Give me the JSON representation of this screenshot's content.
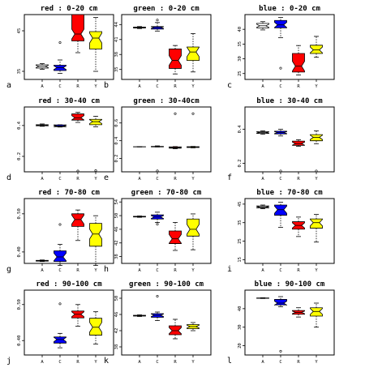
{
  "colors": {
    "A": "#ffffff",
    "C": "#0000ff",
    "R": "#ff0000",
    "Y": "#ffff00"
  },
  "chart_data": [
    {
      "type": "box",
      "panel_label": "a",
      "title": "red : 0-20 cm",
      "categories": [
        "A",
        "C",
        "R",
        "Y"
      ],
      "ylim": [
        0.33,
        0.49
      ],
      "yticks": [
        {
          "v": 0.35,
          "t": "35"
        },
        {
          "v": 0.45,
          "t": "45"
        }
      ],
      "boxes": [
        {
          "min": 0.355,
          "q1": 0.358,
          "med": 0.362,
          "q3": 0.366,
          "max": 0.369,
          "outliers": []
        },
        {
          "min": 0.345,
          "q1": 0.352,
          "med": 0.359,
          "q3": 0.365,
          "max": 0.378,
          "outliers": [
            0.421
          ]
        },
        {
          "min": 0.396,
          "q1": 0.425,
          "med": 0.442,
          "q3": 0.49,
          "max": 0.49,
          "outliers": []
        },
        {
          "min": 0.35,
          "q1": 0.405,
          "med": 0.432,
          "q3": 0.448,
          "max": 0.483,
          "outliers": []
        }
      ]
    },
    {
      "type": "box",
      "panel_label": "b",
      "title": "green : 0-20 cm",
      "categories": [
        "A",
        "C",
        "R",
        "Y"
      ],
      "ylim": [
        0.33,
        0.46
      ],
      "yticks": [
        {
          "v": 0.35,
          "t": "35"
        },
        {
          "v": 0.38,
          "t": "38"
        },
        {
          "v": 0.41,
          "t": "41"
        },
        {
          "v": 0.44,
          "t": "44"
        }
      ],
      "boxes": [
        {
          "min": 0.432,
          "q1": 0.433,
          "med": 0.434,
          "q3": 0.435,
          "max": 0.436,
          "outliers": []
        },
        {
          "min": 0.427,
          "q1": 0.431,
          "med": 0.434,
          "q3": 0.436,
          "max": 0.444,
          "outliers": [
            0.449
          ]
        },
        {
          "min": 0.341,
          "q1": 0.352,
          "med": 0.368,
          "q3": 0.391,
          "max": 0.398,
          "outliers": []
        },
        {
          "min": 0.345,
          "q1": 0.368,
          "med": 0.385,
          "q3": 0.395,
          "max": 0.422,
          "outliers": []
        }
      ]
    },
    {
      "type": "box",
      "panel_label": "c",
      "title": "blue : 0-20 cm",
      "categories": [
        "A",
        "C",
        "R",
        "Y"
      ],
      "ylim": [
        0.23,
        0.45
      ],
      "yticks": [
        {
          "v": 0.25,
          "t": "25"
        },
        {
          "v": 0.3,
          "t": "30"
        },
        {
          "v": 0.35,
          "t": "35"
        },
        {
          "v": 0.4,
          "t": "40"
        }
      ],
      "boxes": [
        {
          "min": 0.398,
          "q1": 0.405,
          "med": 0.412,
          "q3": 0.42,
          "max": 0.426,
          "outliers": []
        },
        {
          "min": 0.372,
          "q1": 0.405,
          "med": 0.415,
          "q3": 0.43,
          "max": 0.44,
          "outliers": [
            0.268
          ]
        },
        {
          "min": 0.245,
          "q1": 0.255,
          "med": 0.275,
          "q3": 0.318,
          "max": 0.345,
          "outliers": []
        },
        {
          "min": 0.305,
          "q1": 0.318,
          "med": 0.33,
          "q3": 0.346,
          "max": 0.376,
          "outliers": []
        }
      ]
    },
    {
      "type": "box",
      "panel_label": "d",
      "title": "red : 30-40 cm",
      "categories": [
        "A",
        "C",
        "R",
        "Y"
      ],
      "ylim": [
        0.1,
        0.52
      ],
      "yticks": [
        {
          "v": 0.2,
          "t": "0.2"
        },
        {
          "v": 0.4,
          "t": "0.4"
        }
      ],
      "boxes": [
        {
          "min": 0.395,
          "q1": 0.398,
          "med": 0.401,
          "q3": 0.405,
          "max": 0.41,
          "outliers": []
        },
        {
          "min": 0.39,
          "q1": 0.392,
          "med": 0.397,
          "q3": 0.404,
          "max": 0.405,
          "outliers": []
        },
        {
          "min": 0.42,
          "q1": 0.435,
          "med": 0.45,
          "q3": 0.475,
          "max": 0.485,
          "outliers": [
            0.105
          ]
        },
        {
          "min": 0.392,
          "q1": 0.405,
          "med": 0.425,
          "q3": 0.44,
          "max": 0.46,
          "outliers": [
            0.108
          ]
        }
      ]
    },
    {
      "type": "box",
      "panel_label": "e",
      "title": "green : 30-40cm",
      "categories": [
        "A",
        "C",
        "R",
        "Y"
      ],
      "ylim": [
        0.05,
        0.78
      ],
      "yticks": [
        {
          "v": 0.2,
          "t": "0.2"
        },
        {
          "v": 0.4,
          "t": "0.4"
        },
        {
          "v": 0.6,
          "t": "0.6"
        }
      ],
      "boxes": [
        {
          "min": 0.33,
          "q1": 0.331,
          "med": 0.332,
          "q3": 0.333,
          "max": 0.334,
          "outliers": []
        },
        {
          "min": 0.33,
          "q1": 0.331,
          "med": 0.333,
          "q3": 0.336,
          "max": 0.342,
          "outliers": [
            0.06
          ]
        },
        {
          "min": 0.31,
          "q1": 0.316,
          "med": 0.322,
          "q3": 0.33,
          "max": 0.334,
          "outliers": [
            0.705
          ]
        },
        {
          "min": 0.32,
          "q1": 0.324,
          "med": 0.328,
          "q3": 0.333,
          "max": 0.336,
          "outliers": [
            0.705
          ]
        }
      ]
    },
    {
      "type": "box",
      "panel_label": "f",
      "title": "blue : 30-40 cm",
      "categories": [
        "A",
        "C",
        "R",
        "Y"
      ],
      "ylim": [
        0.15,
        0.53
      ],
      "yticks": [
        {
          "v": 0.2,
          "t": "0.2"
        },
        {
          "v": 0.4,
          "t": "0.4"
        }
      ],
      "boxes": [
        {
          "min": 0.37,
          "q1": 0.375,
          "med": 0.38,
          "q3": 0.385,
          "max": 0.39,
          "outliers": []
        },
        {
          "min": 0.36,
          "q1": 0.372,
          "med": 0.38,
          "q3": 0.388,
          "max": 0.4,
          "outliers": [
            0.155
          ]
        },
        {
          "min": 0.3,
          "q1": 0.305,
          "med": 0.315,
          "q3": 0.33,
          "max": 0.338,
          "outliers": []
        },
        {
          "min": 0.315,
          "q1": 0.332,
          "med": 0.352,
          "q3": 0.368,
          "max": 0.39,
          "outliers": [
            0.155
          ]
        }
      ]
    },
    {
      "type": "box",
      "panel_label": "g",
      "title": "red : 70-80 cm",
      "categories": [
        "A",
        "C",
        "R",
        "Y"
      ],
      "ylim": [
        0.37,
        0.54
      ],
      "yticks": [
        {
          "v": 0.4,
          "t": "0.40"
        },
        {
          "v": 0.5,
          "t": "0.50"
        }
      ],
      "boxes": [
        {
          "min": 0.375,
          "q1": 0.376,
          "med": 0.377,
          "q3": 0.378,
          "max": 0.379,
          "outliers": []
        },
        {
          "min": 0.365,
          "q1": 0.375,
          "med": 0.387,
          "q3": 0.403,
          "max": 0.42,
          "outliers": [
            0.472
          ]
        },
        {
          "min": 0.43,
          "q1": 0.467,
          "med": 0.485,
          "q3": 0.5,
          "max": 0.51,
          "outliers": []
        },
        {
          "min": 0.365,
          "q1": 0.415,
          "med": 0.447,
          "q3": 0.475,
          "max": 0.495,
          "outliers": []
        }
      ]
    },
    {
      "type": "box",
      "panel_label": "h",
      "title": "green : 70-80 cm",
      "categories": [
        "A",
        "C",
        "R",
        "Y"
      ],
      "ylim": [
        0.36,
        0.55
      ],
      "yticks": [
        {
          "v": 0.38,
          "t": "38"
        },
        {
          "v": 0.42,
          "t": "42"
        },
        {
          "v": 0.46,
          "t": "46"
        },
        {
          "v": 0.5,
          "t": "50"
        },
        {
          "v": 0.54,
          "t": "54"
        }
      ],
      "boxes": [
        {
          "min": 0.495,
          "q1": 0.496,
          "med": 0.497,
          "q3": 0.498,
          "max": 0.499,
          "outliers": []
        },
        {
          "min": 0.48,
          "q1": 0.49,
          "med": 0.496,
          "q3": 0.502,
          "max": 0.51,
          "outliers": [
            0.475
          ]
        },
        {
          "min": 0.398,
          "q1": 0.418,
          "med": 0.432,
          "q3": 0.455,
          "max": 0.48,
          "outliers": []
        },
        {
          "min": 0.4,
          "q1": 0.44,
          "med": 0.46,
          "q3": 0.49,
          "max": 0.505,
          "outliers": []
        }
      ]
    },
    {
      "type": "box",
      "panel_label": "i",
      "title": "blue : 70-80 cm",
      "categories": [
        "A",
        "C",
        "R",
        "Y"
      ],
      "ylim": [
        0.13,
        0.48
      ],
      "yticks": [
        {
          "v": 0.15,
          "t": "15"
        },
        {
          "v": 0.25,
          "t": "25"
        },
        {
          "v": 0.35,
          "t": "35"
        },
        {
          "v": 0.45,
          "t": "45"
        }
      ],
      "boxes": [
        {
          "min": 0.425,
          "q1": 0.43,
          "med": 0.435,
          "q3": 0.44,
          "max": 0.445,
          "outliers": []
        },
        {
          "min": 0.325,
          "q1": 0.39,
          "med": 0.42,
          "q3": 0.445,
          "max": 0.46,
          "outliers": []
        },
        {
          "min": 0.275,
          "q1": 0.315,
          "med": 0.335,
          "q3": 0.355,
          "max": 0.38,
          "outliers": []
        },
        {
          "min": 0.245,
          "q1": 0.32,
          "med": 0.35,
          "q3": 0.37,
          "max": 0.395,
          "outliers": []
        }
      ]
    },
    {
      "type": "box",
      "panel_label": "j",
      "title": "red : 90-100 cm",
      "categories": [
        "A",
        "C",
        "R",
        "Y"
      ],
      "ylim": [
        0.36,
        0.54
      ],
      "yticks": [
        {
          "v": 0.4,
          "t": "0.40"
        },
        {
          "v": 0.5,
          "t": "0.50"
        }
      ],
      "boxes": [
        {
          "min": 0.36,
          "q1": 0.36,
          "med": 0.36,
          "q3": 0.36,
          "max": 0.36,
          "outliers": []
        },
        {
          "min": 0.38,
          "q1": 0.393,
          "med": 0.403,
          "q3": 0.41,
          "max": 0.42,
          "outliers": [
            0.502
          ]
        },
        {
          "min": 0.44,
          "q1": 0.463,
          "med": 0.473,
          "q3": 0.482,
          "max": 0.5,
          "outliers": []
        },
        {
          "min": 0.39,
          "q1": 0.415,
          "med": 0.437,
          "q3": 0.462,
          "max": 0.48,
          "outliers": []
        }
      ]
    },
    {
      "type": "box",
      "panel_label": "k",
      "title": "green : 90-100 cm",
      "categories": [
        "A",
        "C",
        "R",
        "Y"
      ],
      "ylim": [
        0.36,
        0.52
      ],
      "yticks": [
        {
          "v": 0.38,
          "t": "38"
        },
        {
          "v": 0.42,
          "t": "42"
        },
        {
          "v": 0.46,
          "t": "46"
        },
        {
          "v": 0.5,
          "t": "50"
        }
      ],
      "boxes": [
        {
          "min": 0.455,
          "q1": 0.456,
          "med": 0.457,
          "q3": 0.458,
          "max": 0.459,
          "outliers": []
        },
        {
          "min": 0.445,
          "q1": 0.453,
          "med": 0.458,
          "q3": 0.462,
          "max": 0.466,
          "outliers": [
            0.505
          ]
        },
        {
          "min": 0.4,
          "q1": 0.41,
          "med": 0.42,
          "q3": 0.432,
          "max": 0.448,
          "outliers": []
        },
        {
          "min": 0.42,
          "q1": 0.425,
          "med": 0.43,
          "q3": 0.435,
          "max": 0.44,
          "outliers": []
        }
      ]
    },
    {
      "type": "box",
      "panel_label": "l",
      "title": "blue : 90-100 cm",
      "categories": [
        "A",
        "C",
        "R",
        "Y"
      ],
      "ylim": [
        0.15,
        0.5
      ],
      "yticks": [
        {
          "v": 0.2,
          "t": "20"
        },
        {
          "v": 0.3,
          "t": "30"
        },
        {
          "v": 0.4,
          "t": "40"
        }
      ],
      "boxes": [
        {
          "min": 0.455,
          "q1": 0.456,
          "med": 0.457,
          "q3": 0.458,
          "max": 0.459,
          "outliers": []
        },
        {
          "min": 0.41,
          "q1": 0.42,
          "med": 0.43,
          "q3": 0.45,
          "max": 0.465,
          "outliers": [
            0.17
          ]
        },
        {
          "min": 0.355,
          "q1": 0.37,
          "med": 0.38,
          "q3": 0.39,
          "max": 0.405,
          "outliers": []
        },
        {
          "min": 0.3,
          "q1": 0.36,
          "med": 0.385,
          "q3": 0.405,
          "max": 0.43,
          "outliers": []
        }
      ]
    }
  ]
}
